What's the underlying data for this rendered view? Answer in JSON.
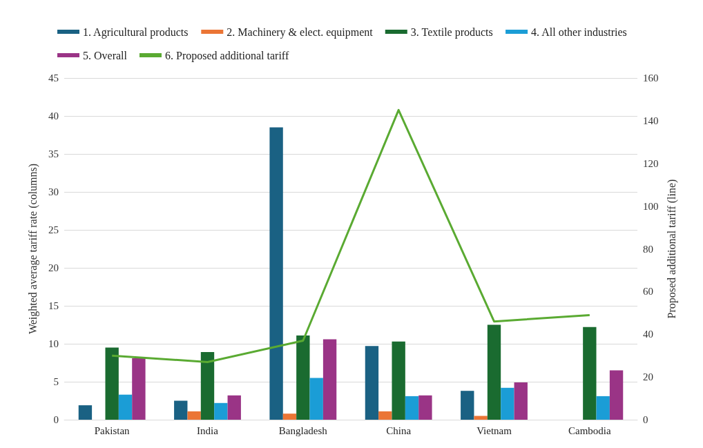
{
  "chart_data": {
    "type": "bar",
    "categories": [
      "Pakistan",
      "India",
      "Bangladesh",
      "China",
      "Vietnam",
      "Cambodia"
    ],
    "ylabel": "Weighted average tariff rate (columns)",
    "y2label": "Proposed additional tariff (line)",
    "ylim": [
      0,
      45
    ],
    "yticks": [
      0,
      5,
      10,
      15,
      20,
      25,
      30,
      35,
      40,
      45
    ],
    "y2lim": [
      0,
      160
    ],
    "y2ticks": [
      0,
      20,
      40,
      60,
      80,
      100,
      120,
      140,
      160
    ],
    "grid": "y",
    "legend": "top",
    "series": [
      {
        "name": "1. Agricultural products",
        "color": "#1a6183",
        "values": [
          1.9,
          2.5,
          38.5,
          9.7,
          3.8,
          null
        ]
      },
      {
        "name": "2. Machinery & elect. equipment",
        "color": "#eb7535",
        "values": [
          null,
          1.1,
          0.8,
          1.1,
          0.5,
          null
        ]
      },
      {
        "name": "3. Textile products",
        "color": "#1a6b30",
        "values": [
          9.5,
          8.9,
          11.1,
          10.3,
          12.5,
          12.2
        ]
      },
      {
        "name": "4. All other industries",
        "color": "#1b9dd6",
        "values": [
          3.3,
          2.2,
          5.5,
          3.1,
          4.2,
          3.1
        ]
      },
      {
        "name": "5. Overall",
        "color": "#9a3486",
        "values": [
          8.1,
          3.2,
          10.6,
          3.2,
          4.9,
          6.5
        ]
      },
      {
        "name": "6. Proposed additional tariff",
        "color": "#5aaa32",
        "type": "line",
        "axis": "y2",
        "values": [
          30,
          27,
          37,
          145,
          46,
          49
        ]
      }
    ]
  }
}
